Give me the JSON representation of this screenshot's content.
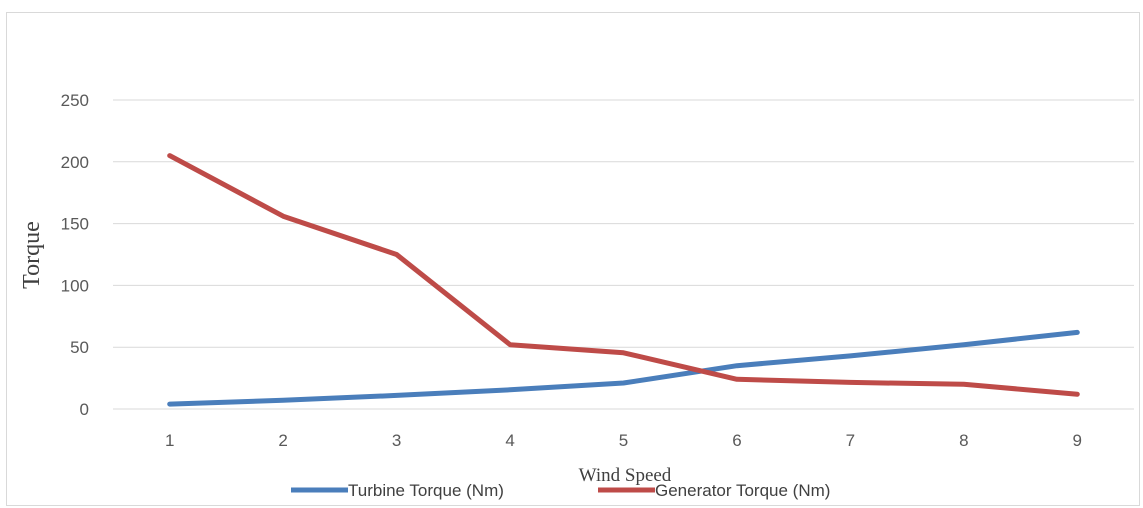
{
  "chart_data": {
    "type": "line",
    "title": "",
    "xlabel": "Wind Speed",
    "ylabel": "Torque",
    "categories": [
      "1",
      "2",
      "3",
      "4",
      "5",
      "6",
      "7",
      "8",
      "9"
    ],
    "yticks": [
      "0",
      "50",
      "100",
      "150",
      "200",
      "250"
    ],
    "ylim": [
      0,
      250
    ],
    "grid": true,
    "legend_position": "bottom",
    "series": [
      {
        "name": "Turbine Torque (Nm)",
        "color": "#4a7ebb",
        "values": [
          4,
          7,
          11,
          15.5,
          21,
          35,
          43,
          52,
          62
        ]
      },
      {
        "name": "Generator Torque (Nm)",
        "color": "#be4b48",
        "values": [
          205,
          156,
          125,
          52,
          45.5,
          24,
          21.5,
          20,
          12
        ]
      }
    ]
  }
}
